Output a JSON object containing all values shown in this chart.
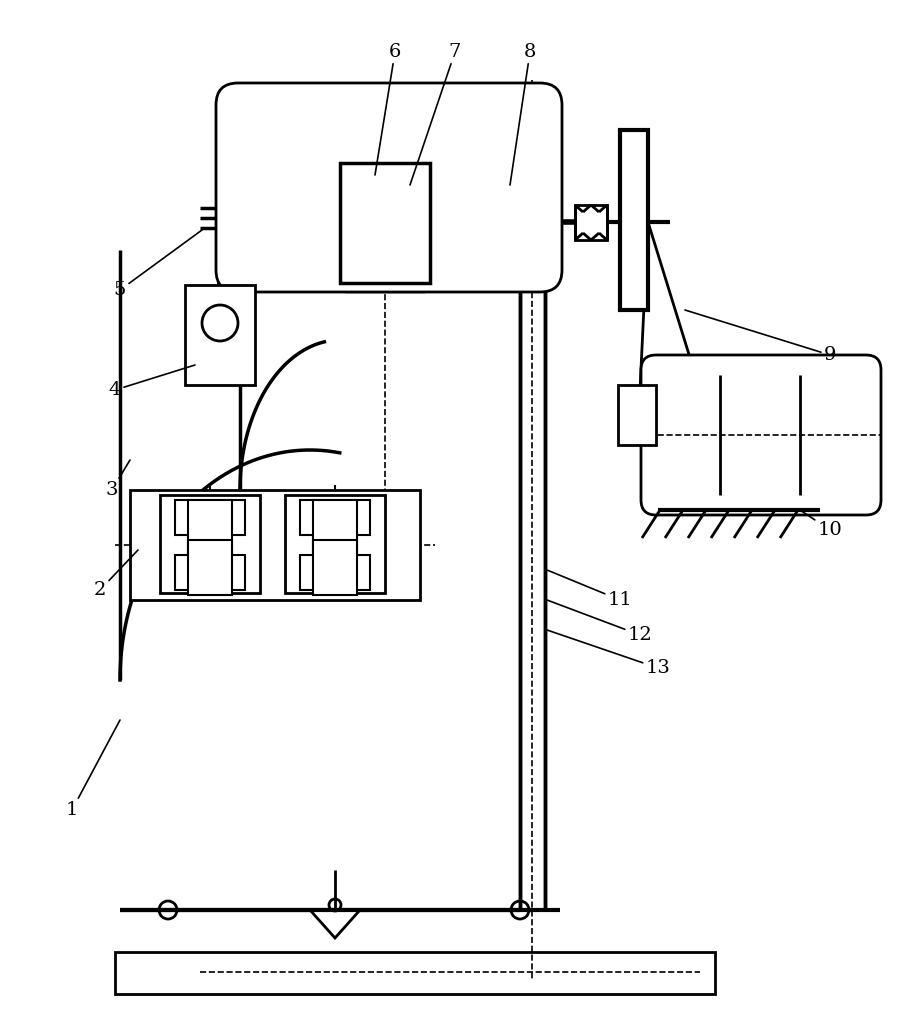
{
  "background": "#ffffff",
  "line_color": "#000000",
  "lw": 2.0,
  "fig_w": 9.07,
  "fig_h": 10.24
}
